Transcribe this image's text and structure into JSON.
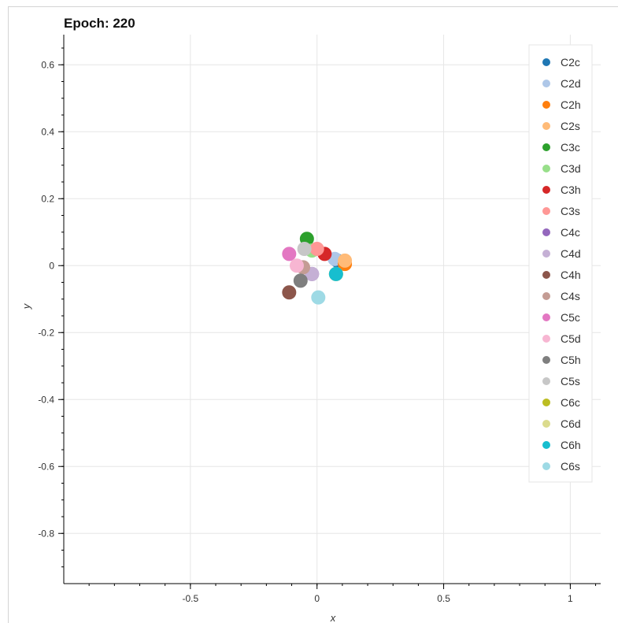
{
  "chart_data": {
    "type": "scatter",
    "title": "Epoch: 220",
    "xlabel": "x",
    "ylabel": "y",
    "xlim": [
      -1.0,
      1.12
    ],
    "ylim": [
      -0.95,
      0.69
    ],
    "xticks": [
      -0.5,
      0,
      0.5,
      1
    ],
    "xtick_labels": [
      "-0.5",
      "0",
      "0.5",
      "1"
    ],
    "yticks": [
      0.6,
      0.4,
      0.2,
      0,
      -0.2,
      -0.4,
      -0.6,
      -0.8
    ],
    "ytick_labels": [
      "0.6",
      "0.4",
      "0.2",
      "0",
      "-0.2",
      "-0.4",
      "-0.6",
      "-0.8"
    ],
    "grid": true,
    "legend_position": "top-right",
    "series": [
      {
        "name": "C2c",
        "color": "#1f77b4",
        "x": 0.08,
        "y": 0.015
      },
      {
        "name": "C2d",
        "color": "#aec7e8",
        "x": 0.07,
        "y": 0.02
      },
      {
        "name": "C2h",
        "color": "#ff7f0e",
        "x": 0.11,
        "y": 0.005
      },
      {
        "name": "C2s",
        "color": "#ffbb78",
        "x": 0.11,
        "y": 0.015
      },
      {
        "name": "C3c",
        "color": "#2ca02c",
        "x": -0.04,
        "y": 0.08
      },
      {
        "name": "C3d",
        "color": "#98df8a",
        "x": -0.02,
        "y": 0.045
      },
      {
        "name": "C3h",
        "color": "#d62728",
        "x": 0.03,
        "y": 0.035
      },
      {
        "name": "C3s",
        "color": "#ff9896",
        "x": 0.0,
        "y": 0.05
      },
      {
        "name": "C4c",
        "color": "#9467bd",
        "x": -0.02,
        "y": -0.025
      },
      {
        "name": "C4d",
        "color": "#c5b0d5",
        "x": -0.02,
        "y": -0.025
      },
      {
        "name": "C4h",
        "color": "#8c564b",
        "x": -0.11,
        "y": -0.08
      },
      {
        "name": "C4s",
        "color": "#c49c94",
        "x": -0.055,
        "y": -0.005
      },
      {
        "name": "C5c",
        "color": "#e377c2",
        "x": -0.11,
        "y": 0.035
      },
      {
        "name": "C5d",
        "color": "#f7b6d2",
        "x": -0.08,
        "y": 0.0
      },
      {
        "name": "C5h",
        "color": "#7f7f7f",
        "x": -0.065,
        "y": -0.045
      },
      {
        "name": "C5s",
        "color": "#c7c7c7",
        "x": -0.05,
        "y": 0.05
      },
      {
        "name": "C6c",
        "color": "#bcbd22",
        "x": 0.075,
        "y": -0.025
      },
      {
        "name": "C6d",
        "color": "#dbdb8d",
        "x": 0.075,
        "y": -0.025
      },
      {
        "name": "C6h",
        "color": "#17becf",
        "x": 0.075,
        "y": -0.025
      },
      {
        "name": "C6s",
        "color": "#9edae5",
        "x": 0.005,
        "y": -0.095
      }
    ]
  }
}
